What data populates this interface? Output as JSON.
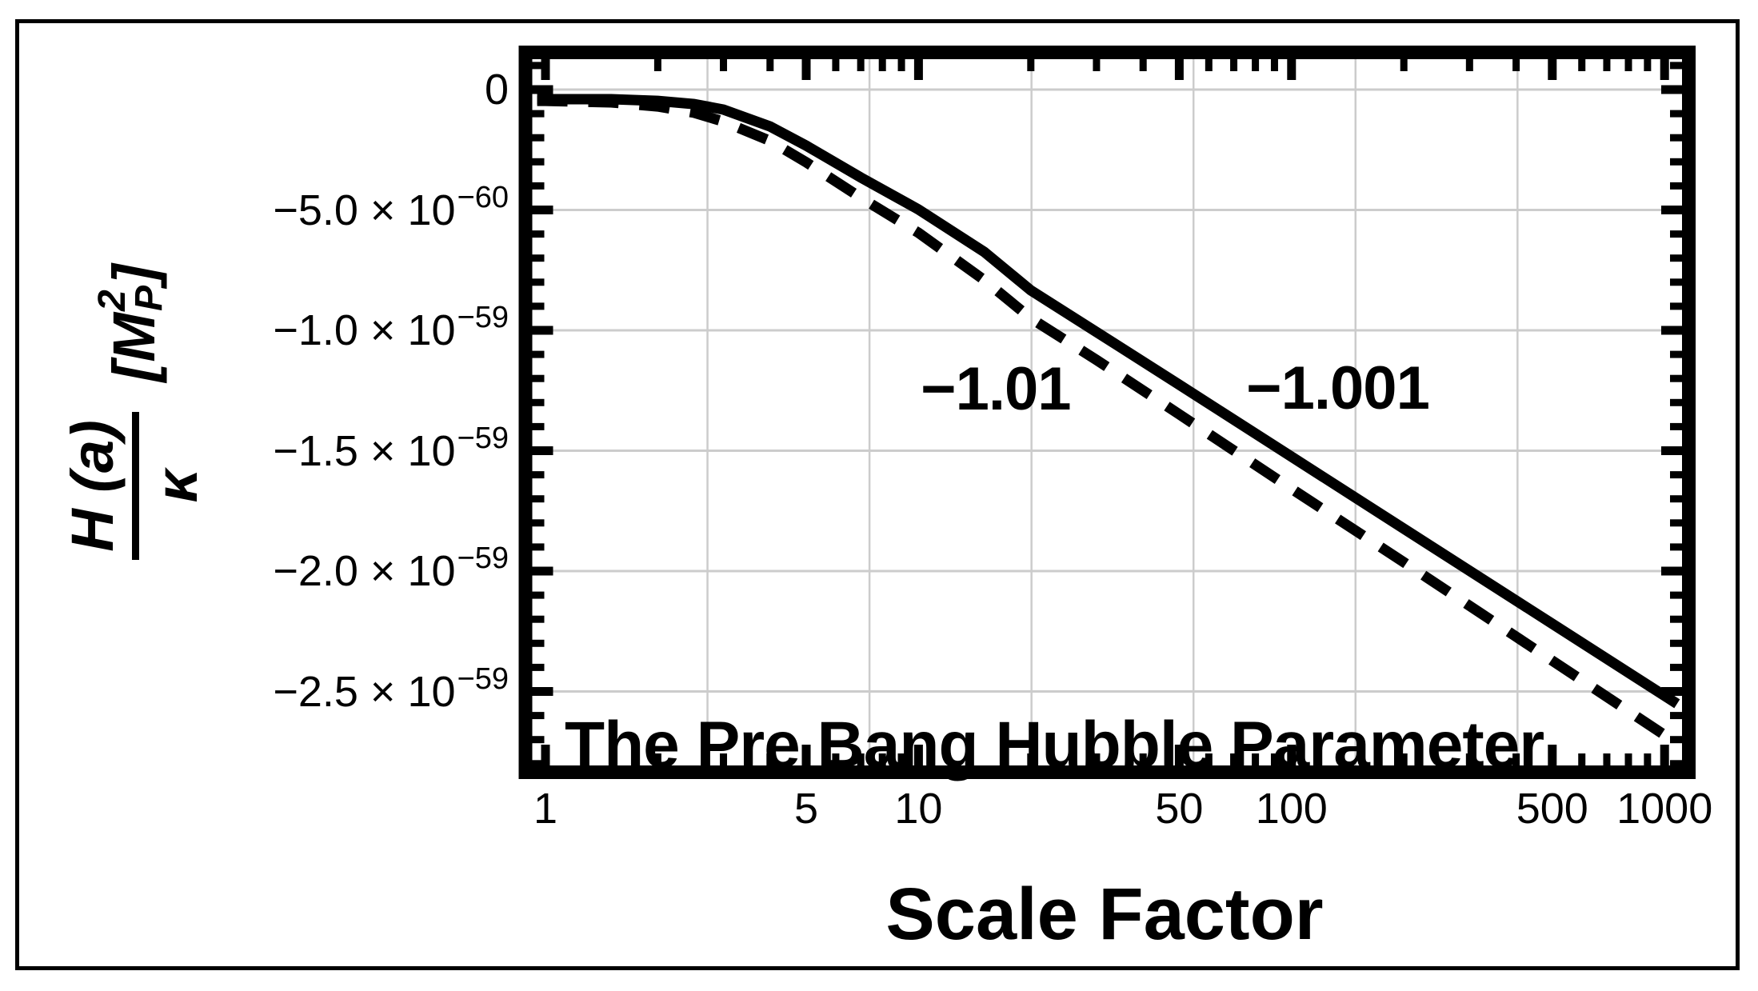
{
  "figure": {
    "background_color": "#ffffff",
    "border_color": "#000000",
    "text_color": "#000000"
  },
  "chart_data": {
    "type": "line",
    "title": "The Pre Bang Hubble Parameter",
    "xlabel": "Scale Factor",
    "ylabel": {
      "numerator": "H (a)",
      "denominator": "κ",
      "units_left": "[M",
      "units_sup": "2",
      "units_sub": "P",
      "units_right": "]"
    },
    "x_scale": "log",
    "x_range": [
      0.93,
      1120
    ],
    "y_range_units_1e59": [
      0.126,
      -2.806
    ],
    "grid_on": true,
    "grid_color": "#cccccc",
    "x_ticks": [
      {
        "value": 1,
        "label": "1"
      },
      {
        "value": 5,
        "label": "5"
      },
      {
        "value": 10,
        "label": "10"
      },
      {
        "value": 50,
        "label": "50"
      },
      {
        "value": 100,
        "label": "100"
      },
      {
        "value": 500,
        "label": "500"
      },
      {
        "value": 1000,
        "label": "1000"
      }
    ],
    "x_minor_ticks": [
      2,
      3,
      4,
      6,
      7,
      8,
      9,
      20,
      30,
      40,
      60,
      70,
      80,
      90,
      200,
      300,
      400,
      600,
      700,
      800,
      900
    ],
    "x_gridlines_at": [
      2.71828,
      7.38906,
      20.0855,
      54.5982,
      148.413,
      403.429
    ],
    "y_ticks": [
      {
        "value_1e59": 0.0,
        "main": "0",
        "exp": ""
      },
      {
        "value_1e59": -0.5,
        "main": "−5.0 × 10",
        "exp": "−60"
      },
      {
        "value_1e59": -1.0,
        "main": "−1.0 × 10",
        "exp": "−59"
      },
      {
        "value_1e59": -1.5,
        "main": "−1.5 × 10",
        "exp": "−59"
      },
      {
        "value_1e59": -2.0,
        "main": "−2.0 × 10",
        "exp": "−59"
      },
      {
        "value_1e59": -2.5,
        "main": "−2.5 × 10",
        "exp": "−59"
      }
    ],
    "y_minor_step_1e59": 0.1,
    "series": [
      {
        "label": "−1.001",
        "style": "solid",
        "color": "#000000",
        "points": [
          [
            0.95,
            -0.04
          ],
          [
            1,
            -0.04
          ],
          [
            1.5,
            -0.04
          ],
          [
            2,
            -0.047
          ],
          [
            2.5,
            -0.06
          ],
          [
            3,
            -0.083
          ],
          [
            4,
            -0.153
          ],
          [
            5,
            -0.233
          ],
          [
            7,
            -0.365
          ],
          [
            10,
            -0.498
          ],
          [
            15,
            -0.674
          ],
          [
            20,
            -0.834
          ],
          [
            30,
            -1.007
          ],
          [
            50,
            -1.226
          ],
          [
            100,
            -1.525
          ],
          [
            200,
            -1.824
          ],
          [
            500,
            -2.219
          ],
          [
            1000,
            -2.518
          ],
          [
            1080,
            -2.551
          ]
        ]
      },
      {
        "label": "−1.01",
        "style": "dashed",
        "color": "#000000",
        "points": [
          [
            0.95,
            -0.047
          ],
          [
            1,
            -0.047
          ],
          [
            1.5,
            -0.053
          ],
          [
            2,
            -0.07
          ],
          [
            2.5,
            -0.096
          ],
          [
            3,
            -0.133
          ],
          [
            4,
            -0.213
          ],
          [
            5,
            -0.302
          ],
          [
            7,
            -0.449
          ],
          [
            10,
            -0.595
          ],
          [
            15,
            -0.791
          ],
          [
            20,
            -0.95
          ],
          [
            30,
            -1.123
          ],
          [
            50,
            -1.349
          ],
          [
            100,
            -1.658
          ],
          [
            200,
            -1.963
          ],
          [
            500,
            -2.372
          ],
          [
            1000,
            -2.681
          ],
          [
            1060,
            -2.701
          ]
        ]
      }
    ],
    "annotations": [
      {
        "label": "−1.01",
        "a": 16.1,
        "v_1e59": -1.246
      },
      {
        "label": "−1.001",
        "a": 133.0,
        "v_1e59": -1.243
      }
    ]
  }
}
